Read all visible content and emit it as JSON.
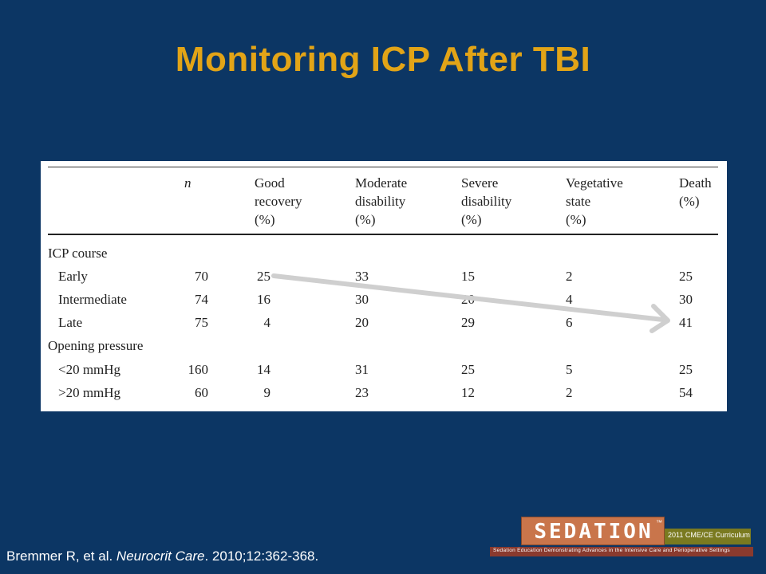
{
  "slide": {
    "title": "Monitoring ICP After TBI"
  },
  "table": {
    "headers": {
      "n": "n",
      "good": [
        "Good",
        "recovery",
        "(%)"
      ],
      "moderate": [
        "Moderate",
        "disability",
        "(%)"
      ],
      "severe": [
        "Severe",
        "disability",
        "(%)"
      ],
      "vegetative": [
        "Vegetative",
        "state",
        "(%)"
      ],
      "death": [
        "Death",
        "(%)"
      ]
    },
    "groups": [
      {
        "label": "ICP course",
        "rows": [
          {
            "label": "Early",
            "n": "70",
            "good": "25",
            "moderate": "33",
            "severe": "15",
            "vegetative": "2",
            "death": "25"
          },
          {
            "label": "Intermediate",
            "n": "74",
            "good": "16",
            "moderate": "30",
            "severe": "20",
            "vegetative": "4",
            "death": "30"
          },
          {
            "label": "Late",
            "n": "75",
            "good": "4",
            "moderate": "20",
            "severe": "29",
            "vegetative": "6",
            "death": "41"
          }
        ]
      },
      {
        "label": "Opening pressure",
        "rows": [
          {
            "label": "<20 mmHg",
            "n": "160",
            "good": "14",
            "moderate": "31",
            "severe": "25",
            "vegetative": "5",
            "death": "25"
          },
          {
            "label": ">20 mmHg",
            "n": "60",
            "good": "9",
            "moderate": "23",
            "severe": "12",
            "vegetative": "2",
            "death": "54"
          }
        ]
      }
    ]
  },
  "citation": {
    "authors": "Bremmer R, et al. ",
    "journal": "Neurocrit Care",
    "details": ". 2010;12:362-368."
  },
  "logo": {
    "word": "SEDATION",
    "tm": "™",
    "side": "2011 CME/CE Curriculum",
    "strip": "Sedation Education Demonstrating Advances in the Intensive Care and Perioperative Settings"
  },
  "colors": {
    "background": "#0c3664",
    "title": "#e2a417",
    "arrow": "#cfcfcf"
  }
}
